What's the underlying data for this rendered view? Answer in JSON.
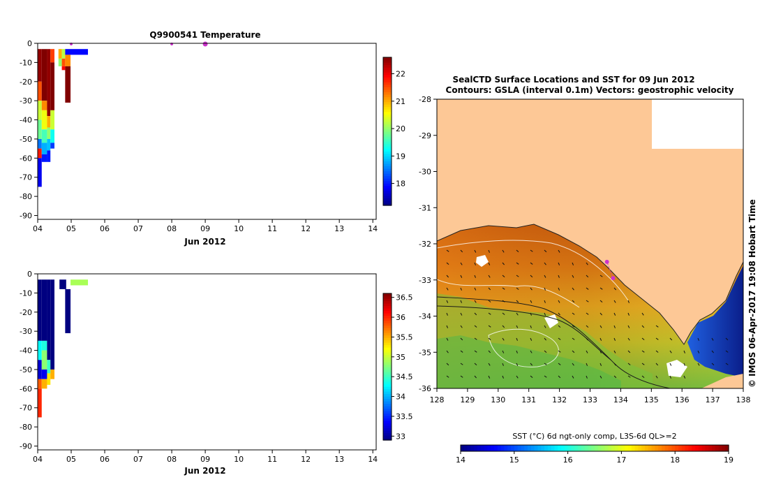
{
  "chart_data": [
    {
      "type": "heatmap",
      "title": "Q9900541  Temperature",
      "xlabel": "Jun 2012",
      "x_ticks": [
        "04",
        "05",
        "06",
        "07",
        "08",
        "09",
        "10",
        "11",
        "12",
        "13",
        "14"
      ],
      "y_ticks": [
        "0",
        "-10",
        "-20",
        "-30",
        "-40",
        "-50",
        "-60",
        "-70",
        "-80",
        "-90"
      ],
      "xlim": [
        4.0,
        14.1
      ],
      "ylim": [
        -92,
        0
      ],
      "colorbar": {
        "ticks": [
          "18",
          "19",
          "20",
          "21",
          "22"
        ],
        "range": [
          17.2,
          22.6
        ]
      },
      "surface_markers": [
        5.0,
        8.0,
        9.0
      ],
      "profiles": [
        {
          "x0": 4.0,
          "x1": 4.12,
          "cells": [
            [
              -3,
              -20,
              22.5
            ],
            [
              -20,
              -30,
              21.5
            ],
            [
              -30,
              -40,
              20.3
            ],
            [
              -40,
              -50,
              19.8
            ],
            [
              -50,
              -55,
              18.5
            ],
            [
              -55,
              -60,
              21.8
            ],
            [
              -60,
              -75,
              17.8
            ]
          ]
        },
        {
          "x0": 4.12,
          "x1": 4.28,
          "cells": [
            [
              -3,
              -30,
              22.6
            ],
            [
              -30,
              -35,
              21.2
            ],
            [
              -35,
              -45,
              20.5
            ],
            [
              -45,
              -52,
              19.6
            ],
            [
              -52,
              -58,
              18.8
            ],
            [
              -58,
              -62,
              18.0
            ]
          ]
        },
        {
          "x0": 4.28,
          "x1": 4.38,
          "cells": [
            [
              -3,
              -38,
              22.5
            ],
            [
              -38,
              -44,
              21.0
            ],
            [
              -44,
              -50,
              20.0
            ],
            [
              -50,
              -56,
              18.9
            ],
            [
              -56,
              -62,
              18.0
            ]
          ]
        },
        {
          "x0": 4.38,
          "x1": 4.5,
          "cells": [
            [
              -3,
              -10,
              21.6
            ],
            [
              -10,
              -35,
              22.6
            ],
            [
              -35,
              -45,
              20.3
            ],
            [
              -45,
              -52,
              19.3
            ],
            [
              -52,
              -55,
              18.2
            ]
          ]
        },
        {
          "x0": 4.62,
          "x1": 4.72,
          "cells": [
            [
              -3,
              -8,
              21.0
            ],
            [
              -8,
              -12,
              20.0
            ]
          ]
        },
        {
          "x0": 4.72,
          "x1": 4.82,
          "cells": [
            [
              -3,
              -8,
              20.2
            ],
            [
              -8,
              -12,
              21.5
            ],
            [
              -12,
              -14,
              21.9
            ]
          ]
        },
        {
          "x0": 4.82,
          "x1": 5.5,
          "cells": [
            [
              -3,
              -6,
              17.9
            ]
          ]
        },
        {
          "x0": 4.82,
          "x1": 4.98,
          "cells": [
            [
              -6,
              -12,
              21.2
            ],
            [
              -12,
              -31,
              22.6
            ]
          ]
        }
      ]
    },
    {
      "type": "heatmap",
      "xlabel": "Jun 2012",
      "x_ticks": [
        "04",
        "05",
        "06",
        "07",
        "08",
        "09",
        "10",
        "11",
        "12",
        "13",
        "14"
      ],
      "y_ticks": [
        "0",
        "-10",
        "-20",
        "-30",
        "-40",
        "-50",
        "-60",
        "-70",
        "-80",
        "-90"
      ],
      "xlim": [
        4.0,
        14.1
      ],
      "ylim": [
        -92,
        0
      ],
      "colorbar": {
        "ticks": [
          "33",
          "33.5",
          "34",
          "34.5",
          "35",
          "35.5",
          "36",
          "36.5"
        ],
        "range": [
          32.9,
          36.6
        ]
      },
      "profiles": [
        {
          "x0": 4.0,
          "x1": 4.12,
          "cells": [
            [
              -3,
              -35,
              32.9
            ],
            [
              -35,
              -45,
              34.3
            ],
            [
              -45,
              -55,
              33.2
            ],
            [
              -55,
              -60,
              35.8
            ],
            [
              -60,
              -75,
              36.0
            ]
          ]
        },
        {
          "x0": 4.12,
          "x1": 4.28,
          "cells": [
            [
              -3,
              -35,
              32.9
            ],
            [
              -35,
              -40,
              34.4
            ],
            [
              -40,
              -50,
              34.8
            ],
            [
              -50,
              -55,
              33.3
            ],
            [
              -55,
              -60,
              35.5
            ]
          ]
        },
        {
          "x0": 4.28,
          "x1": 4.38,
          "cells": [
            [
              -3,
              -45,
              32.9
            ],
            [
              -45,
              -52,
              34.5
            ],
            [
              -52,
              -58,
              35.3
            ]
          ]
        },
        {
          "x0": 4.38,
          "x1": 4.5,
          "cells": [
            [
              -3,
              -50,
              32.9
            ],
            [
              -50,
              -55,
              35.5
            ]
          ]
        },
        {
          "x0": 4.65,
          "x1": 4.85,
          "cells": [
            [
              -3,
              -8,
              32.9
            ]
          ]
        },
        {
          "x0": 4.82,
          "x1": 4.98,
          "cells": [
            [
              -8,
              -31,
              32.9
            ]
          ]
        },
        {
          "x0": 4.98,
          "x1": 5.5,
          "cells": [
            [
              -3,
              -6,
              34.9
            ]
          ]
        }
      ]
    },
    {
      "type": "heatmap",
      "title": "SealCTD Surface Locations and SST for 09 Jun 2012",
      "subtitle": "Contours: GSLA (interval 0.1m) Vectors: geostrophic velocity",
      "x_ticks": [
        "128",
        "129",
        "130",
        "131",
        "132",
        "133",
        "134",
        "135",
        "136",
        "137",
        "138"
      ],
      "y_ticks": [
        "-28",
        "-29",
        "-30",
        "-31",
        "-32",
        "-33",
        "-34",
        "-35",
        "-36"
      ],
      "xlim": [
        128,
        138
      ],
      "ylim": [
        -36,
        -28
      ],
      "colorbar": {
        "label": "SST (°C) 6d ngt-only comp, L3S-6d QL>=2",
        "ticks": [
          "14",
          "15",
          "16",
          "17",
          "18",
          "19"
        ],
        "range": [
          14,
          19
        ]
      },
      "seal_locations": [
        [
          133.75,
          -32.95
        ],
        [
          133.55,
          -32.5
        ]
      ],
      "side_label": "© IMOS 06-Apr-2017 19:08 Hobart Time"
    }
  ],
  "colors": {
    "land": "#fdc896",
    "marker": "#cc33cc"
  }
}
